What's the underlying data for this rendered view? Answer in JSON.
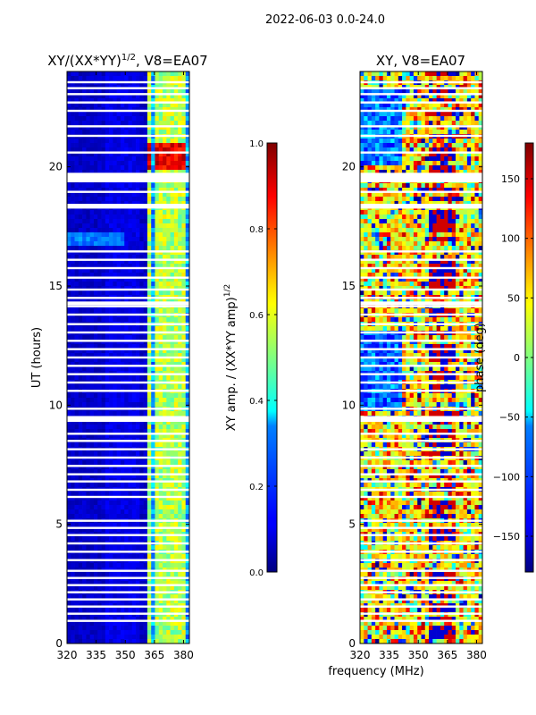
{
  "figure": {
    "suptitle": "2022-06-03 0.0-24.0",
    "xlabel": "frequency (MHz)"
  },
  "chart_data": [
    {
      "type": "heatmap",
      "title_main": "XY/(XX*YY)",
      "title_sup": "1/2",
      "title_rest": ", V8=EA07",
      "ylabel": "UT (hours)",
      "xlim": [
        320,
        383
      ],
      "ylim": [
        0,
        24
      ],
      "xticks": [
        320,
        335,
        350,
        365,
        380
      ],
      "yticks": [
        0,
        5,
        10,
        15,
        20
      ],
      "colorbar": {
        "label_main": "XY amp. / (XX*YY amp)",
        "label_sup": "1/2",
        "range": [
          0.0,
          1.0
        ],
        "ticks": [
          "0.0",
          "0.2",
          "0.4",
          "0.6",
          "0.8",
          "1.0"
        ],
        "tick_values": [
          0.0,
          0.2,
          0.4,
          0.6,
          0.8,
          1.0
        ],
        "colormap": "jet"
      },
      "bright_channels_mhz": [
        363,
        366,
        368,
        371,
        374,
        377,
        380
      ],
      "notable": "bright red/orange band near 20 h at 363-380 MHz; moderate ~0.6 values at channels 363-380 MHz elsewhere; background ~0.05"
    },
    {
      "type": "heatmap",
      "title": "XY, V8=EA07",
      "xlim": [
        320,
        383
      ],
      "ylim": [
        0,
        24
      ],
      "xticks": [
        320,
        335,
        350,
        365,
        380
      ],
      "yticks": [
        0,
        5,
        10,
        15,
        20
      ],
      "colorbar": {
        "label": "phase (deg)",
        "range": [
          -180,
          180
        ],
        "ticks": [
          "−150",
          "−100",
          "−50",
          "0",
          "50",
          "100",
          "150"
        ],
        "tick_values": [
          -150,
          -100,
          -50,
          0,
          50,
          100,
          150
        ],
        "colormap": "jet"
      },
      "notable": "phase noise-like pattern; predominantly yellow/green near 30-80 deg, blue bands (-120 deg) near 320-340 MHz at 10-13 h and 20-23 h"
    }
  ],
  "gap_rows_hours": [
    0.95,
    1.25,
    1.55,
    1.85,
    2.15,
    2.45,
    2.75,
    3.05,
    3.5,
    3.85,
    4.2,
    4.55,
    4.85,
    5.15,
    6.15,
    6.45,
    6.8,
    7.1,
    7.45,
    7.8,
    8.15,
    8.5,
    8.8,
    9.5,
    9.85,
    10.6,
    10.95,
    11.3,
    11.65,
    12.0,
    12.35,
    12.7,
    13.05,
    13.4,
    13.8,
    14.15,
    14.5,
    14.85,
    15.35,
    15.75,
    16.1,
    16.45,
    18.3,
    18.95,
    19.6,
    20.6,
    21.3,
    21.7,
    22.35,
    22.7,
    23.05,
    23.3,
    23.55
  ],
  "wide_gaps_hours": [
    [
      19.35,
      19.75
    ],
    [
      18.25,
      18.45
    ],
    [
      14.2,
      14.35
    ],
    [
      9.3,
      9.5
    ]
  ]
}
